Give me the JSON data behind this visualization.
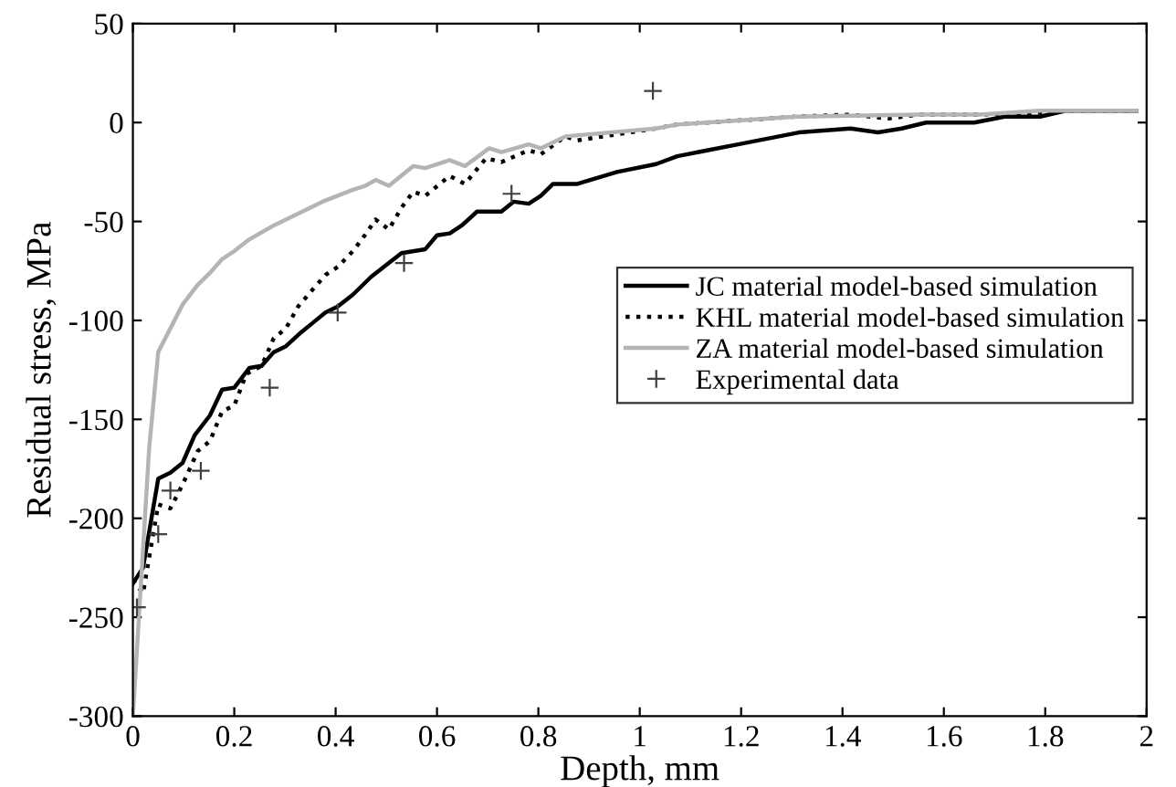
{
  "chart_data": {
    "type": "line",
    "xlabel": "Depth, mm",
    "ylabel": "Residual stress, MPa",
    "xlim": [
      0,
      2
    ],
    "ylim": [
      -300,
      50
    ],
    "xticks": [
      0,
      0.2,
      0.4,
      0.6,
      0.8,
      1,
      1.2,
      1.4,
      1.6,
      1.8,
      2
    ],
    "yticks": [
      -300,
      -250,
      -200,
      -150,
      -100,
      -50,
      0,
      50
    ],
    "grid": false,
    "legend": "right",
    "series": [
      {
        "name": "JC material model-based simulation",
        "color": "#000000",
        "line_style": "solid",
        "x": [
          0,
          0.02,
          0.05,
          0.074,
          0.098,
          0.122,
          0.152,
          0.176,
          0.2,
          0.23,
          0.254,
          0.278,
          0.302,
          0.332,
          0.356,
          0.38,
          0.404,
          0.434,
          0.47,
          0.505,
          0.53,
          0.577,
          0.6,
          0.625,
          0.649,
          0.679,
          0.727,
          0.751,
          0.781,
          0.805,
          0.829,
          0.877,
          0.955,
          1.032,
          1.074,
          1.194,
          1.314,
          1.416,
          1.47,
          1.517,
          1.565,
          1.66,
          1.72,
          1.79,
          1.84,
          1.98
        ],
        "values": [
          -233,
          -225,
          -180,
          -177,
          -172,
          -158,
          -148,
          -135,
          -134,
          -124,
          -123,
          -116,
          -113,
          -106,
          -101,
          -96,
          -93,
          -87,
          -78,
          -71,
          -66,
          -64,
          -57,
          -56,
          -52,
          -45,
          -45,
          -40,
          -41,
          -37,
          -31,
          -31,
          -25,
          -21,
          -17,
          -11,
          -5,
          -3,
          -5,
          -3,
          0,
          0,
          3,
          3,
          6,
          6
        ]
      },
      {
        "name": "KHL material model-based simulation",
        "color": "#000000",
        "line_style": "dotted",
        "x": [
          0,
          0.02,
          0.05,
          0.074,
          0.098,
          0.128,
          0.152,
          0.176,
          0.2,
          0.224,
          0.254,
          0.278,
          0.302,
          0.326,
          0.356,
          0.38,
          0.404,
          0.434,
          0.452,
          0.479,
          0.505,
          0.53,
          0.553,
          0.577,
          0.625,
          0.655,
          0.697,
          0.727,
          0.781,
          0.805,
          0.853,
          0.877,
          1.032,
          1.074,
          1.31,
          1.416,
          1.49,
          1.55,
          1.67,
          1.79,
          1.84,
          1.98
        ],
        "values": [
          -231,
          -238,
          -193,
          -195,
          -183,
          -166,
          -161,
          -146,
          -143,
          -127,
          -123,
          -109,
          -104,
          -93,
          -84,
          -77,
          -73,
          -65,
          -59,
          -49,
          -54,
          -43,
          -35,
          -37,
          -27,
          -31,
          -18,
          -20,
          -14,
          -16,
          -7,
          -9,
          -3,
          -1,
          3,
          4,
          2,
          4,
          4,
          5,
          6,
          6
        ]
      },
      {
        "name": "ZA material model-based simulation",
        "color": "#b4b4b4",
        "line_style": "solid",
        "x": [
          0,
          0.032,
          0.05,
          0.074,
          0.098,
          0.128,
          0.152,
          0.176,
          0.2,
          0.23,
          0.278,
          0.326,
          0.374,
          0.434,
          0.458,
          0.479,
          0.505,
          0.553,
          0.577,
          0.625,
          0.655,
          0.703,
          0.727,
          0.781,
          0.805,
          0.853,
          1.032,
          1.074,
          1.31,
          1.55,
          1.67,
          1.79,
          1.98
        ],
        "values": [
          -300,
          -165,
          -116,
          -104,
          -92,
          -82,
          -76,
          -69,
          -65,
          -59,
          -52,
          -46,
          -40,
          -34,
          -32,
          -29,
          -32,
          -22,
          -23,
          -19,
          -22,
          -13,
          -15,
          -11,
          -13,
          -7,
          -3,
          -1,
          3,
          4,
          4,
          6,
          6
        ]
      },
      {
        "name": "Experimental data",
        "type": "scatter",
        "marker": "cross",
        "color": "#404040",
        "x": [
          0.008,
          0.05,
          0.074,
          0.134,
          0.27,
          0.404,
          0.535,
          0.747,
          1.026
        ],
        "values": [
          -245,
          -208,
          -186,
          -176,
          -134,
          -96,
          -71,
          -36,
          16
        ]
      }
    ]
  }
}
